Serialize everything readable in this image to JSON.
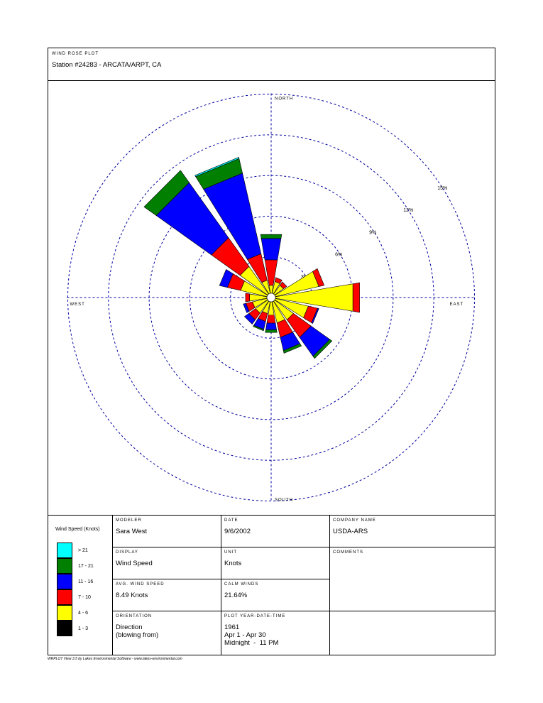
{
  "header": {
    "label": "WIND ROSE PLOT",
    "station": "Station #24283 - ARCATA/ARPT, CA"
  },
  "chart_data": {
    "type": "windrose",
    "unit": "%",
    "ring_labels": [
      "3%",
      "6%",
      "9%",
      "12%",
      "15%"
    ],
    "ring_values": [
      3,
      6,
      9,
      12,
      15
    ],
    "directions_labels": {
      "north": "NORTH",
      "south": "SOUTH",
      "east": "EAST",
      "west": "WEST"
    },
    "bins": [
      "1 - 3",
      "4 - 6",
      "7 - 10",
      "11 - 16",
      "17 - 21",
      "> 21"
    ],
    "bin_colors": [
      "#000000",
      "#ffff00",
      "#ff0000",
      "#0000ff",
      "#007f00",
      "#00ffff"
    ],
    "sectors": [
      {
        "dir": 0,
        "values": [
          0.0,
          0.6,
          1.9,
          1.6,
          0.3,
          0.0
        ]
      },
      {
        "dir": 22.5,
        "values": [
          0.0,
          0.9,
          0.3,
          0.0,
          0.0,
          0.0
        ]
      },
      {
        "dir": 45,
        "values": [
          0.0,
          0.8,
          0.3,
          0.0,
          0.0,
          0.0
        ]
      },
      {
        "dir": 67.5,
        "values": [
          0.0,
          3.3,
          0.4,
          0.0,
          0.0,
          0.0
        ]
      },
      {
        "dir": 90,
        "values": [
          0.0,
          5.8,
          0.5,
          0.0,
          0.0,
          0.0
        ]
      },
      {
        "dir": 112.5,
        "values": [
          0.0,
          2.5,
          0.7,
          0.1,
          0.0,
          0.0
        ]
      },
      {
        "dir": 135,
        "values": [
          0.0,
          1.7,
          1.6,
          1.7,
          0.2,
          0.0
        ]
      },
      {
        "dir": 157.5,
        "values": [
          0.0,
          1.6,
          1.1,
          1.0,
          0.2,
          0.0
        ]
      },
      {
        "dir": 180,
        "values": [
          0.0,
          1.0,
          0.6,
          0.5,
          0.2,
          0.0
        ]
      },
      {
        "dir": 202.5,
        "values": [
          0.0,
          0.9,
          0.6,
          0.6,
          0.1,
          0.0
        ]
      },
      {
        "dir": 225,
        "values": [
          0.0,
          1.1,
          0.6,
          0.4,
          0.0,
          0.0
        ]
      },
      {
        "dir": 247.5,
        "values": [
          0.0,
          1.1,
          0.5,
          0.2,
          0.0,
          0.0
        ]
      },
      {
        "dir": 270,
        "values": [
          0.0,
          1.3,
          0.3,
          0.0,
          0.0,
          0.0
        ]
      },
      {
        "dir": 292.5,
        "values": [
          0.0,
          2.0,
          1.0,
          0.6,
          0.0,
          0.0
        ]
      },
      {
        "dir": 315,
        "values": [
          0.0,
          2.5,
          2.6,
          5.0,
          1.1,
          0.0
        ]
      },
      {
        "dir": 337.5,
        "values": [
          0.0,
          1.0,
          2.0,
          6.1,
          1.1,
          0.1
        ]
      }
    ]
  },
  "info": {
    "legend_title": "Wind Speed (Knots)",
    "modeler_label": "MODELER",
    "modeler": "Sara West",
    "date_label": "DATE",
    "date": "9/6/2002",
    "company_label": "COMPANY NAME",
    "company": "USDA-ARS",
    "display_label": "DISPLAY",
    "display": "Wind Speed",
    "unit_label": "UNIT",
    "unit": "Knots",
    "comments_label": "COMMENTS",
    "avg_label": "AVG. WIND SPEED",
    "avg": "8.49 Knots",
    "calm_label": "CALM WINDS",
    "calm": "21.64%",
    "orient_label": "ORIENTATION",
    "orient": "Direction\n(blowing from)",
    "plot_label": "PLOT YEAR-DATE-TIME",
    "plot": "1961\nApr 1 - Apr 30\nMidnight  -  11 PM"
  },
  "footer": "WRPLOT View 3.5 by Lakes Environmental Software - www.lakes-environmental.com"
}
